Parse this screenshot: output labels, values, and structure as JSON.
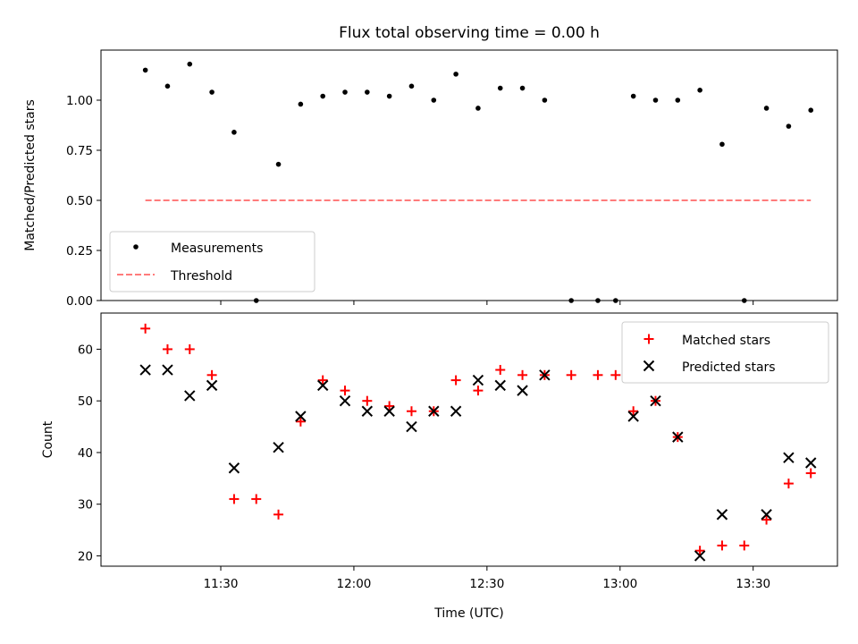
{
  "chart_data": [
    {
      "type": "scatter",
      "title": "Flux total observing time = 0.00 h",
      "xlabel": "",
      "ylabel": "Matched/Predicted stars",
      "ylim": [
        0.0,
        1.25
      ],
      "yticks": [
        "0.00",
        "0.25",
        "0.50",
        "0.75",
        "1.00"
      ],
      "ytick_values": [
        0.0,
        0.25,
        0.5,
        0.75,
        1.0
      ],
      "xlim": [
        "11:03",
        "13:49"
      ],
      "xtick_values": [
        "11:30",
        "12:00",
        "12:30",
        "13:00",
        "13:30"
      ],
      "xtick_labels_visible": false,
      "legend": {
        "location": "lower left",
        "entries": [
          "Measurements",
          "Threshold"
        ]
      },
      "series": [
        {
          "name": "Measurements",
          "style": "point",
          "color": "#000000",
          "x": [
            "11:13",
            "11:18",
            "11:23",
            "11:28",
            "11:33",
            "11:38",
            "11:43",
            "11:48",
            "11:53",
            "11:58",
            "12:03",
            "12:08",
            "12:13",
            "12:18",
            "12:23",
            "12:28",
            "12:33",
            "12:38",
            "12:43",
            "12:49",
            "12:55",
            "12:59",
            "13:03",
            "13:08",
            "13:13",
            "13:18",
            "13:23",
            "13:28",
            "13:33",
            "13:38",
            "13:43"
          ],
          "y": [
            1.15,
            1.07,
            1.18,
            1.04,
            0.84,
            0.0,
            0.68,
            0.98,
            1.02,
            1.04,
            1.04,
            1.02,
            1.07,
            1.0,
            1.13,
            0.96,
            1.06,
            1.06,
            1.0,
            0.0,
            0.0,
            0.0,
            1.02,
            1.0,
            1.0,
            1.05,
            0.78,
            0.0,
            0.96,
            0.87,
            0.95
          ]
        },
        {
          "name": "Threshold",
          "style": "dashed-line",
          "color": "#ff7b7b",
          "x": [
            "11:13",
            "13:43"
          ],
          "y": [
            0.5,
            0.5
          ]
        }
      ]
    },
    {
      "type": "scatter",
      "title": "",
      "xlabel": "Time (UTC)",
      "ylabel": "Count",
      "ylim": [
        18,
        67
      ],
      "yticks": [
        "20",
        "30",
        "40",
        "50",
        "60"
      ],
      "ytick_values": [
        20,
        30,
        40,
        50,
        60
      ],
      "xlim": [
        "11:03",
        "13:49"
      ],
      "xtick_values": [
        "11:30",
        "12:00",
        "12:30",
        "13:00",
        "13:30"
      ],
      "xtick_labels": [
        "11:30",
        "12:00",
        "12:30",
        "13:00",
        "13:30"
      ],
      "legend": {
        "location": "upper right",
        "entries": [
          "Matched stars",
          "Predicted stars"
        ]
      },
      "series": [
        {
          "name": "Matched stars",
          "marker": "plus",
          "color": "#ff0000",
          "x": [
            "11:13",
            "11:18",
            "11:23",
            "11:28",
            "11:33",
            "11:38",
            "11:43",
            "11:48",
            "11:53",
            "11:58",
            "12:03",
            "12:08",
            "12:13",
            "12:18",
            "12:23",
            "12:28",
            "12:33",
            "12:38",
            "12:43",
            "12:49",
            "12:55",
            "12:59",
            "13:03",
            "13:08",
            "13:13",
            "13:18",
            "13:23",
            "13:28",
            "13:33",
            "13:38",
            "13:43"
          ],
          "y": [
            64,
            60,
            60,
            55,
            31,
            31,
            28,
            46,
            54,
            52,
            50,
            49,
            48,
            48,
            54,
            52,
            56,
            55,
            55,
            55,
            55,
            55,
            48,
            50,
            43,
            21,
            22,
            22,
            27,
            34,
            36
          ]
        },
        {
          "name": "Predicted stars",
          "marker": "x",
          "color": "#000000",
          "x": [
            "11:13",
            "11:18",
            "11:23",
            "11:28",
            "11:33",
            "11:43",
            "11:48",
            "11:53",
            "11:58",
            "12:03",
            "12:08",
            "12:13",
            "12:18",
            "12:23",
            "12:28",
            "12:33",
            "12:38",
            "12:43",
            "13:03",
            "13:08",
            "13:13",
            "13:18",
            "13:23",
            "13:33",
            "13:38",
            "13:43"
          ],
          "y": [
            56,
            56,
            51,
            53,
            37,
            41,
            47,
            53,
            50,
            48,
            48,
            45,
            48,
            48,
            54,
            53,
            52,
            55,
            47,
            50,
            43,
            20,
            28,
            28,
            39,
            38
          ]
        }
      ]
    }
  ]
}
